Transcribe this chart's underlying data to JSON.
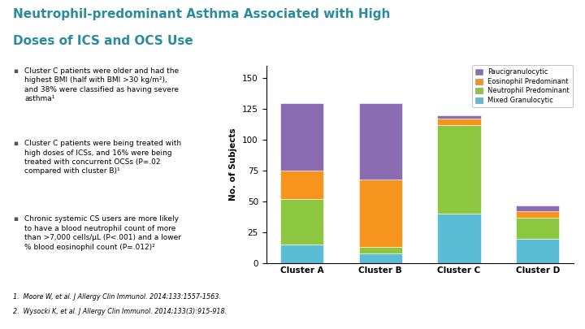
{
  "clusters": [
    "Cluster A",
    "Cluster B",
    "Cluster C",
    "Cluster D"
  ],
  "segments": {
    "Mixed Granulocytic": [
      15,
      8,
      40,
      20
    ],
    "Neutrophil Predominant": [
      37,
      5,
      72,
      17
    ],
    "Eosinophil Predominant": [
      23,
      55,
      5,
      5
    ],
    "Paucigranulocytic": [
      55,
      62,
      3,
      5
    ]
  },
  "colors": {
    "Mixed Granulocytic": "#5BBCD6",
    "Neutrophil Predominant": "#8DC63F",
    "Eosinophil Predominant": "#F7941E",
    "Paucigranulocytic": "#8B6BB1"
  },
  "ylabel": "No. of Subjects",
  "ylim": [
    0,
    160
  ],
  "yticks": [
    0,
    25,
    50,
    75,
    100,
    125,
    150
  ],
  "title_line1": "Neutrophil-predominant Asthma Associated with High",
  "title_line2": "Doses of ICS and OCS Use",
  "title_color": "#2A8B9C",
  "background_color": "#FFFFFF",
  "bar_width": 0.55,
  "footnote1": "1.  Moore W, et al. J Allergy Clin Immunol. 2014;133:1557-1563.",
  "footnote2": "2.  Wysocki K, et al. J Allergy Clin Immunol. 2014;133(3):915-918.",
  "footer_green": "#9DC35C",
  "footer_teal": "#1B9BB4",
  "bullet_texts": [
    "Cluster C patients were older and had the\nhighest BMI (half with BMI >30 kg/m²),\nand 38% were classified as having severe\nasthma¹",
    "Cluster C patients were being treated with\nhigh doses of ICSs, and 16% were being\ntreated with concurrent OCSs (P=.02\ncompared with cluster B)¹",
    "Chronic systemic CS users are more likely\nto have a blood neutrophil count of more\nthan >7,000 cells/μL (P<.001) and a lower\n% blood eosinophil count (P=.012)²"
  ],
  "legend_order": [
    "Paucigranulocytic",
    "Eosinophil Predominant",
    "Neutrophil Predominant",
    "Mixed Granulocytic"
  ]
}
